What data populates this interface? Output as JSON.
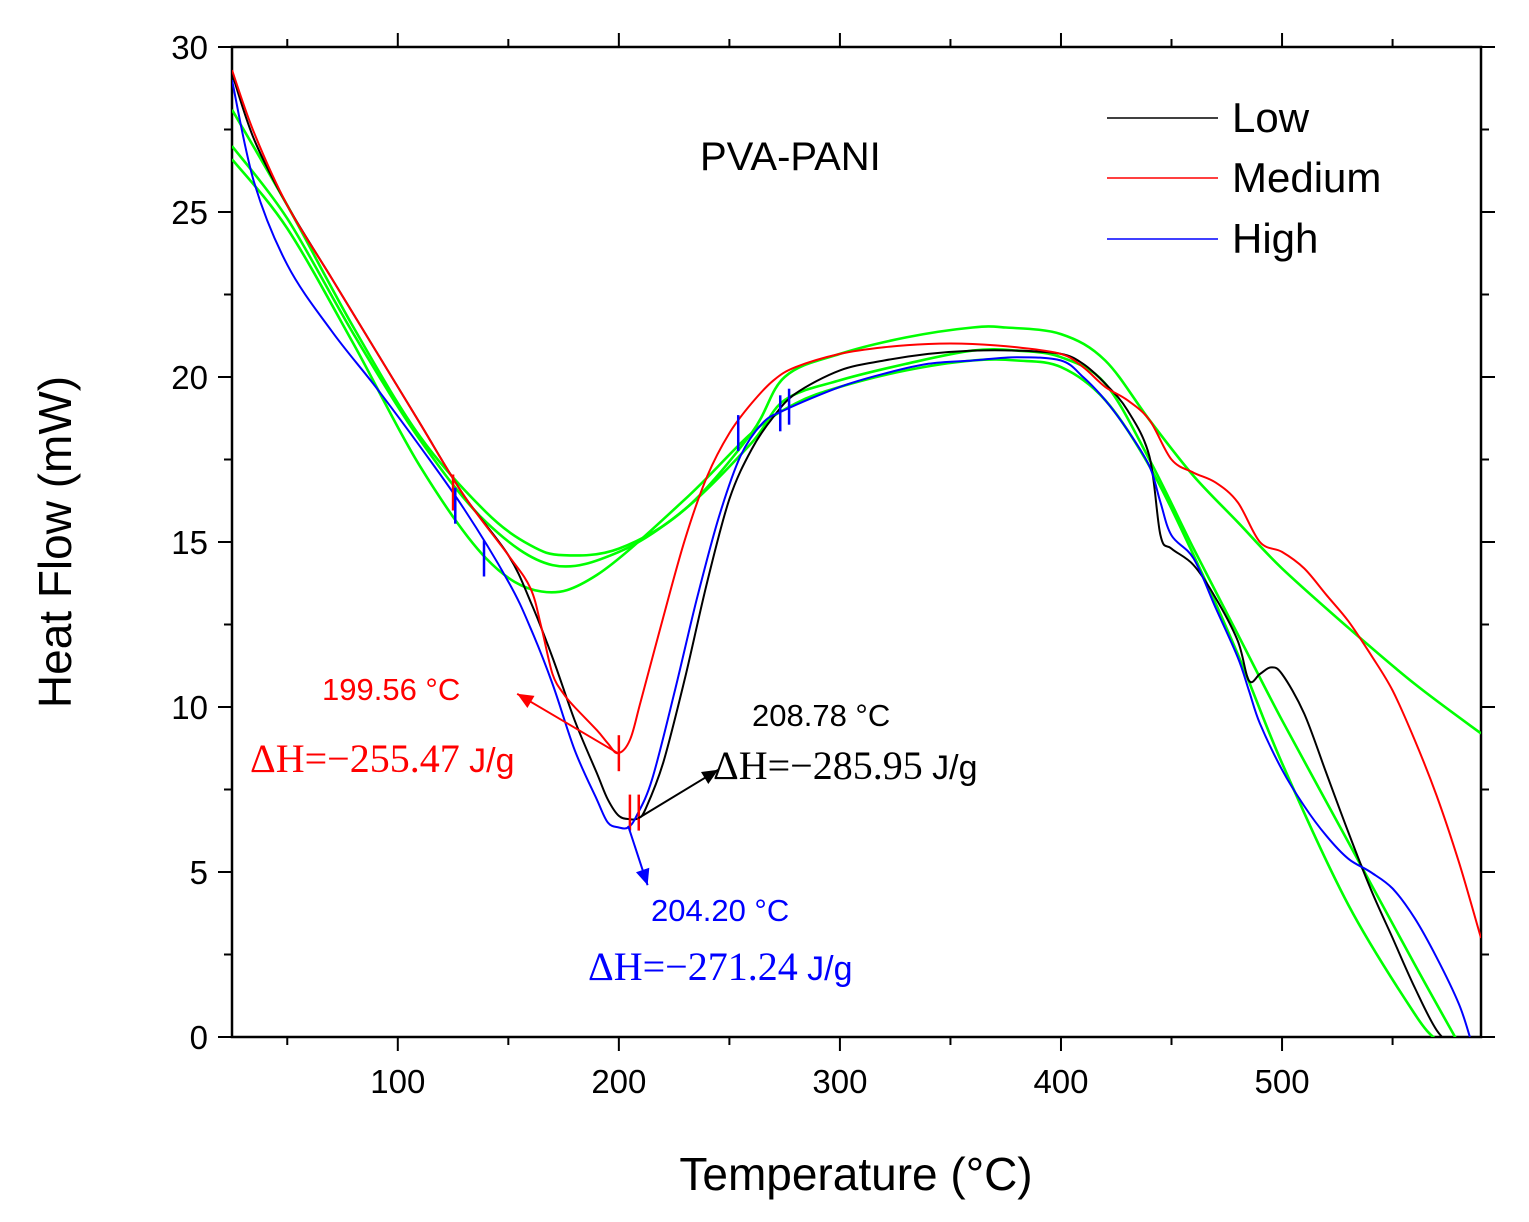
{
  "chart_data": {
    "type": "line",
    "title": "PVA-PANI",
    "xlabel": "Temperature (°C)",
    "ylabel": "Heat Flow (mW)",
    "xlim": [
      25,
      590
    ],
    "ylim": [
      0,
      30
    ],
    "x_ticks": [
      100,
      200,
      300,
      400,
      500
    ],
    "y_ticks": [
      0,
      5,
      10,
      15,
      20,
      25,
      30
    ],
    "legend": {
      "position": "top-right",
      "entries": [
        "Low",
        "Medium",
        "High"
      ]
    },
    "colors": {
      "Low": "#000000",
      "Medium": "#ff0000",
      "High": "#0000ff",
      "baseline": "#00ff00"
    },
    "series": [
      {
        "name": "Low",
        "x": [
          25,
          35,
          50,
          70,
          90,
          110,
          130,
          150,
          160,
          170,
          180,
          190,
          195,
          200,
          205,
          208.78,
          212,
          220,
          230,
          240,
          250,
          260,
          270,
          280,
          300,
          320,
          340,
          360,
          380,
          400,
          410,
          420,
          430,
          440,
          445,
          450,
          460,
          470,
          480,
          485,
          490,
          495,
          500,
          510,
          520,
          530,
          540,
          550,
          560,
          570,
          580,
          585
        ],
        "y": [
          29.2,
          27.2,
          25.2,
          23.0,
          20.8,
          18.6,
          16.4,
          14.6,
          13.2,
          11.5,
          9.6,
          8.0,
          7.2,
          6.7,
          6.6,
          6.63,
          6.9,
          8.3,
          10.9,
          13.8,
          16.3,
          17.8,
          18.8,
          19.5,
          20.2,
          20.5,
          20.7,
          20.8,
          20.8,
          20.7,
          20.4,
          19.8,
          19.0,
          17.6,
          15.2,
          14.8,
          14.3,
          13.3,
          12.0,
          10.8,
          11.0,
          11.2,
          11.0,
          9.8,
          8.0,
          6.2,
          4.5,
          3.0,
          1.5,
          0.2,
          -0.5,
          -1.0
        ]
      },
      {
        "name": "Medium",
        "x": [
          25,
          35,
          50,
          70,
          90,
          110,
          130,
          150,
          160,
          165,
          170,
          175,
          180,
          190,
          195,
          199.56,
          205,
          210,
          220,
          230,
          240,
          250,
          260,
          270,
          280,
          300,
          320,
          340,
          360,
          380,
          400,
          410,
          420,
          430,
          440,
          450,
          460,
          470,
          480,
          490,
          500,
          510,
          520,
          530,
          540,
          550,
          560,
          570,
          580,
          590
        ],
        "y": [
          29.3,
          27.4,
          25.2,
          23.0,
          20.8,
          18.6,
          16.4,
          14.6,
          13.6,
          12.4,
          11.0,
          10.4,
          10.0,
          9.3,
          8.9,
          8.6,
          9.0,
          10.2,
          12.7,
          15.1,
          17.0,
          18.3,
          19.2,
          19.9,
          20.3,
          20.7,
          20.9,
          21.0,
          21.0,
          20.9,
          20.7,
          20.3,
          19.7,
          19.3,
          18.7,
          17.5,
          17.1,
          16.8,
          16.2,
          15.0,
          14.7,
          14.2,
          13.4,
          12.6,
          11.6,
          10.5,
          9.0,
          7.3,
          5.3,
          3.0
        ]
      },
      {
        "name": "High",
        "x": [
          25,
          35,
          50,
          70,
          90,
          110,
          130,
          150,
          160,
          170,
          180,
          190,
          195,
          200,
          204.2,
          208,
          215,
          225,
          235,
          245,
          255,
          265,
          275,
          300,
          320,
          340,
          360,
          380,
          400,
          410,
          420,
          430,
          440,
          445,
          450,
          460,
          470,
          480,
          485,
          490,
          500,
          510,
          520,
          530,
          540,
          550,
          560,
          570,
          580,
          585
        ],
        "y": [
          29.0,
          25.9,
          23.4,
          21.4,
          19.7,
          17.9,
          16.0,
          13.8,
          12.4,
          10.7,
          8.7,
          7.2,
          6.5,
          6.35,
          6.35,
          6.7,
          7.8,
          10.4,
          13.2,
          15.7,
          17.6,
          18.6,
          19.0,
          19.7,
          20.1,
          20.4,
          20.5,
          20.6,
          20.5,
          20.0,
          19.3,
          18.4,
          17.3,
          16.2,
          15.2,
          14.5,
          13.0,
          11.5,
          10.5,
          9.5,
          8.1,
          7.0,
          6.1,
          5.4,
          5.0,
          4.5,
          3.6,
          2.4,
          1.0,
          0.0
        ]
      }
    ],
    "baselines": [
      {
        "x": [
          25,
          50,
          80,
          110,
          140,
          160,
          175,
          200,
          230,
          260,
          275,
          300,
          330,
          360,
          375,
          400,
          420,
          440,
          460,
          480,
          500,
          530,
          560,
          590
        ],
        "y": [
          28.1,
          25.2,
          21.5,
          18.2,
          15.9,
          14.9,
          14.6,
          14.8,
          16.0,
          18.3,
          20.0,
          20.7,
          21.2,
          21.5,
          21.5,
          21.3,
          20.5,
          18.7,
          17.0,
          15.6,
          14.2,
          12.4,
          10.7,
          9.2
        ]
      },
      {
        "x": [
          25,
          50,
          80,
          110,
          140,
          170,
          200,
          230,
          260,
          275,
          300,
          330,
          360,
          380,
          400,
          420,
          440,
          460,
          480,
          500,
          530,
          560,
          585
        ],
        "y": [
          27.0,
          24.8,
          21.3,
          18.1,
          15.6,
          14.3,
          14.7,
          16.0,
          18.0,
          19.3,
          19.9,
          20.4,
          20.8,
          20.8,
          20.6,
          19.8,
          17.5,
          14.8,
          12.2,
          9.6,
          5.9,
          2.2,
          -0.8
        ]
      },
      {
        "x": [
          25,
          50,
          80,
          110,
          140,
          165,
          190,
          230,
          260,
          280,
          300,
          330,
          360,
          380,
          400,
          420,
          440,
          460,
          480,
          500,
          530,
          560,
          570
        ],
        "y": [
          26.6,
          24.5,
          21.0,
          17.3,
          14.5,
          13.5,
          14.0,
          16.3,
          18.3,
          19.2,
          19.7,
          20.2,
          20.5,
          20.5,
          20.3,
          19.3,
          17.3,
          14.6,
          11.6,
          8.3,
          4.0,
          0.7,
          -0.1
        ]
      }
    ],
    "tangent_marks": [
      {
        "series": "Medium",
        "x": 125,
        "y": 16.5
      },
      {
        "series": "Medium",
        "x": 200,
        "y": 8.6
      },
      {
        "series": "Medium",
        "x": 205,
        "y": 6.8
      },
      {
        "series": "Medium",
        "x": 209,
        "y": 6.8
      },
      {
        "series": "High",
        "x": 126,
        "y": 16.1
      },
      {
        "series": "High",
        "x": 139,
        "y": 14.5
      },
      {
        "series": "High",
        "x": 254,
        "y": 18.3
      },
      {
        "series": "High",
        "x": 273,
        "y": 18.9
      },
      {
        "series": "High",
        "x": 277,
        "y": 19.1
      }
    ],
    "annotations": [
      {
        "series": "Medium",
        "temp_label": "199.56 °C",
        "dh_value": "ΔH=−255.47",
        "dh_unit": " J/g",
        "color": "#ff0000",
        "arrow_from": [
          199.56,
          8.6
        ],
        "arrow_to": [
          154,
          10.4
        ]
      },
      {
        "series": "Low",
        "temp_label": "208.78 °C",
        "dh_value": "ΔH=−285.95",
        "dh_unit": " J/g",
        "color": "#000000",
        "arrow_from": [
          208.78,
          6.63
        ],
        "arrow_to": [
          245,
          8.1
        ]
      },
      {
        "series": "High",
        "temp_label": "204.20 °C",
        "dh_value": "ΔH=−271.24",
        "dh_unit": " J/g",
        "color": "#0000ff",
        "arrow_from": [
          204.2,
          6.4
        ],
        "arrow_to": [
          213,
          4.6
        ]
      }
    ]
  }
}
